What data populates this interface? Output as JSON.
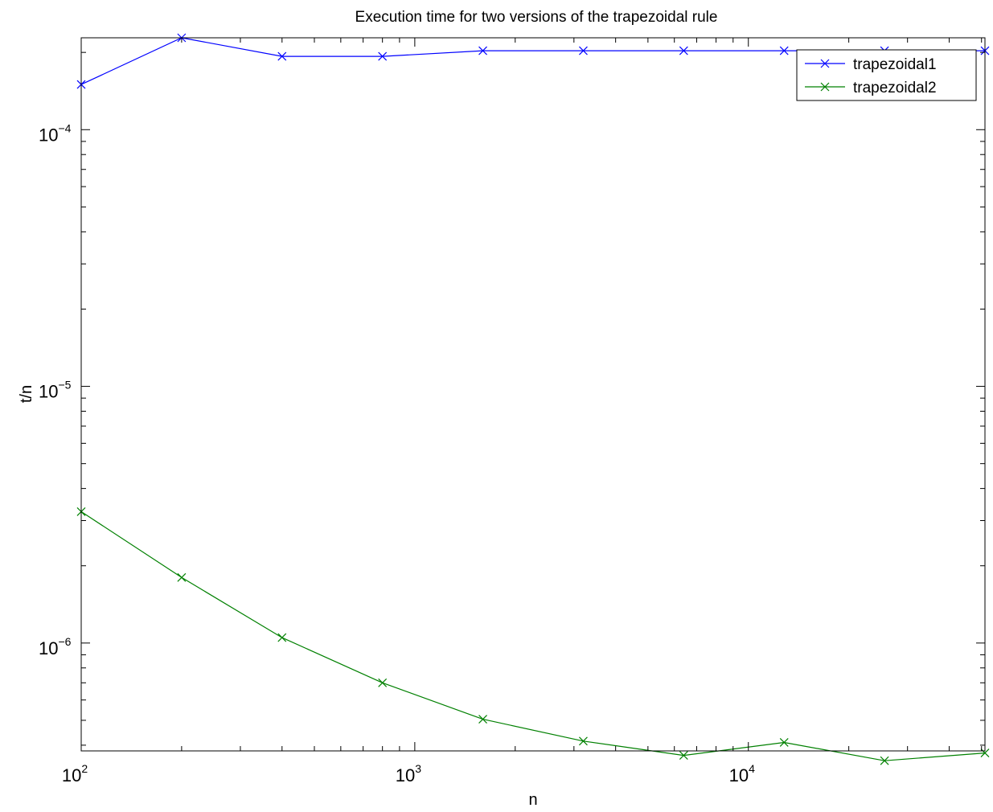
{
  "chart_data": {
    "type": "line",
    "title": "Execution time for two versions of the trapezoidal rule",
    "xlabel": "n",
    "ylabel": "t/n",
    "x_scale": "log",
    "y_scale": "log",
    "xlim": [
      100,
      51200
    ],
    "ylim": [
      3.8e-07,
      0.000228
    ],
    "grid": false,
    "legend_position": "top-right",
    "x_ticks": [
      {
        "value": 100,
        "base": "10",
        "exp": "2"
      },
      {
        "value": 1000,
        "base": "10",
        "exp": "3"
      },
      {
        "value": 10000,
        "base": "10",
        "exp": "4"
      }
    ],
    "y_ticks": [
      {
        "value": 0.0001,
        "base": "10",
        "exp": "−4"
      },
      {
        "value": 1e-05,
        "base": "10",
        "exp": "−5"
      },
      {
        "value": 1e-06,
        "base": "10",
        "exp": "−6"
      }
    ],
    "x": [
      100,
      200,
      400,
      800,
      1600,
      3200,
      6400,
      12800,
      25600,
      51200
    ],
    "series": [
      {
        "name": "trapezoidal1",
        "color": "#0000ff",
        "marker": "x",
        "values": [
          0.00015,
          0.000228,
          0.000193,
          0.000193,
          0.000203,
          0.000203,
          0.000203,
          0.000203,
          0.000203,
          0.000203
        ]
      },
      {
        "name": "trapezoidal2",
        "color": "#008000",
        "marker": "x",
        "values": [
          3.25e-06,
          1.8e-06,
          1.05e-06,
          7e-07,
          5.05e-07,
          4.15e-07,
          3.65e-07,
          4.1e-07,
          3.48e-07,
          3.73e-07
        ]
      }
    ]
  }
}
